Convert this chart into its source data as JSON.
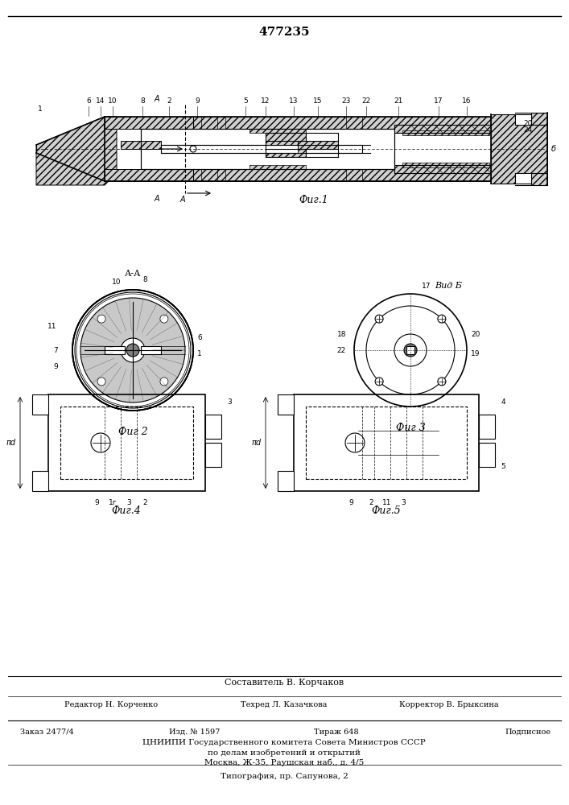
{
  "patent_number": "477235",
  "background_color": "#ffffff",
  "line_color": "#000000",
  "hatch_color": "#000000",
  "fig1_caption": "Фиг.1",
  "fig2_caption": "Фиг 2",
  "fig3_caption": "Фиг 3",
  "fig4_caption": "Фиг.4",
  "fig5_caption": "Фиг.5",
  "view_label_AA": "А-А",
  "view_label_B": "Вид Б",
  "footer_line1": "Составитель В. Корчаков",
  "footer_line2_left": "Редактор Н. Корченко",
  "footer_line2_mid": "Техред Л. Казачкова",
  "footer_line2_right": "Корректор В. Брыксина",
  "footer_line3_left": "Заказ 2477/4",
  "footer_line3_mid1": "Изд. № 1597",
  "footer_line3_mid2": "Тираж 648",
  "footer_line3_right": "Подписное",
  "footer_line4": "ЦНИИПИ Государственного комитета Совета Министров СССР",
  "footer_line5": "по делам изобретений и открытий",
  "footer_line6": "Москва, Ж-35, Раушская наб., д. 4/5",
  "footer_line7": "Типография, пр. Сапунова, 2"
}
